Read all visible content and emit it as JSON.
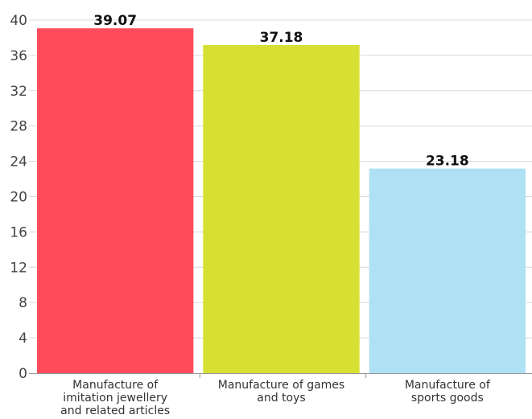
{
  "chart_data": {
    "type": "bar",
    "title": "",
    "xlabel": "",
    "ylabel": "",
    "categories": [
      [
        "Manufacture of",
        "imitation jewellery",
        "and related articles"
      ],
      [
        "Manufacture of games",
        "and toys"
      ],
      [
        "Manufacture of",
        "sports goods"
      ]
    ],
    "values": [
      39.07,
      37.18,
      23.18
    ],
    "value_labels": [
      "39.07",
      "37.18",
      "23.18"
    ],
    "colors": [
      "#ff4b5c",
      "#d7df32",
      "#aee1f3"
    ],
    "ylim": [
      0,
      40
    ],
    "yticks": [
      0,
      4,
      8,
      12,
      16,
      20,
      24,
      28,
      32,
      36,
      40
    ],
    "grid": true,
    "legend": "none"
  }
}
